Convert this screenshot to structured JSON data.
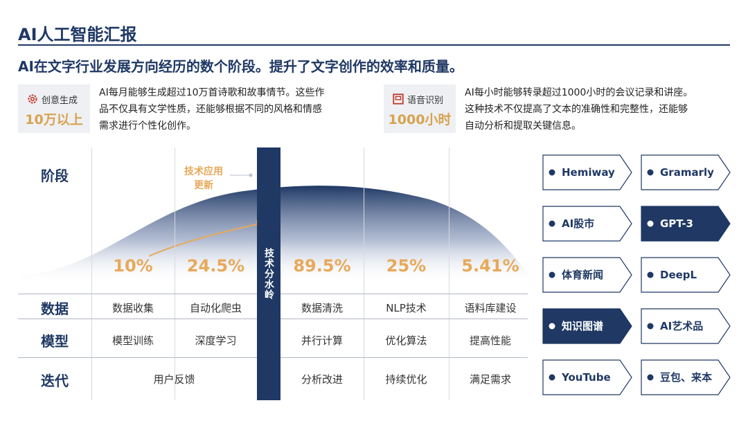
{
  "header": {
    "title": "AI人工智能汇报",
    "subtitle": "AI在文字行业发展方向经历的数个阶段。提升了文字创作的效率和质量。"
  },
  "stats": [
    {
      "label": "创意生成",
      "value": "10万以上",
      "icon": "gear-icon",
      "desc_lines": [
        "AI每月能够生成超过10万首诗歌和故事情节。这些作",
        "品不仅具有文学性质，还能够根据不同的风格和情感",
        "需求进行个性化创作。"
      ]
    },
    {
      "label": "语音识别",
      "value": "1000小时",
      "icon": "square-icon",
      "desc_lines": [
        "AI每小时能够转录超过1000小时的会议记录和讲座。",
        "这种技术不仅提高了文本的准确性和完整性，还能够",
        "自动分析和提取关键信息。"
      ]
    }
  ],
  "diagram": {
    "row_labels": {
      "stage": "阶段",
      "data": "数据",
      "model": "模型",
      "iteration": "迭代"
    },
    "annotation": [
      "技术应用",
      "更新"
    ],
    "divider_label": "技术分水岭",
    "percentages": [
      "10%",
      "24.5%",
      "89.5%",
      "25%",
      "5.41%"
    ],
    "data_row": [
      "数据收集",
      "自动化爬虫",
      "数据清洗",
      "NLP技术",
      "语料库建设"
    ],
    "model_row": [
      "模型训练",
      "深度学习",
      "并行计算",
      "优化算法",
      "提高性能"
    ],
    "iteration_row": [
      "用户反馈",
      "分析改进",
      "持续优化",
      "满足需求"
    ],
    "colors": {
      "navy": "#1f3864",
      "accent": "#e7a95a"
    }
  },
  "tools": [
    {
      "name": "Hemiway",
      "highlighted": false
    },
    {
      "name": "Gramarly",
      "highlighted": false
    },
    {
      "name": "AI股市",
      "highlighted": false
    },
    {
      "name": "GPT-3",
      "highlighted": true
    },
    {
      "name": "体育新闻",
      "highlighted": false
    },
    {
      "name": "DeepL",
      "highlighted": false
    },
    {
      "name": "知识图谱",
      "highlighted": true
    },
    {
      "name": "AI艺术品",
      "highlighted": false
    },
    {
      "name": "YouTube",
      "highlighted": false
    },
    {
      "name": "豆包、来本",
      "highlighted": false
    }
  ]
}
